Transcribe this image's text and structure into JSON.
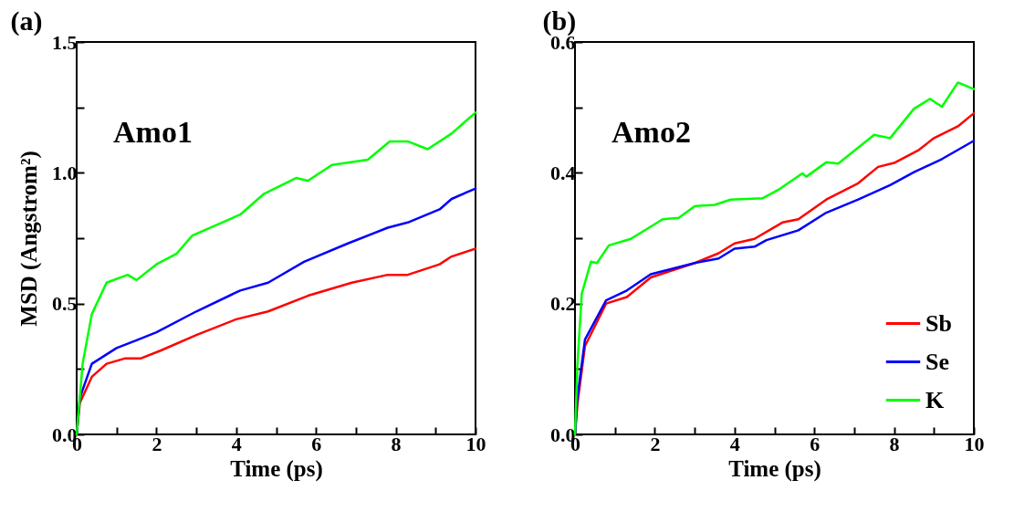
{
  "chart_data": [
    {
      "type": "line",
      "title": "(a)",
      "xlabel": "Time (ps)",
      "ylabel": "MSD (Angstrom²)",
      "annotations": [
        "Amo1"
      ],
      "legend": false,
      "line_style": "solid",
      "xlim": [
        0,
        10
      ],
      "ylim": [
        0,
        1.5
      ],
      "xticks": [
        0,
        {
          "value": 1,
          "label": null
        },
        2,
        {
          "value": 3,
          "label": null
        },
        4,
        {
          "value": 5,
          "label": null
        },
        6,
        {
          "value": 7,
          "label": null
        },
        8,
        {
          "value": 9,
          "label": null
        },
        10
      ],
      "yticks": [
        {
          "value": 0,
          "label": "0.0"
        },
        {
          "value": 0.25,
          "label": null
        },
        {
          "value": 0.5,
          "label": "0.5"
        },
        {
          "value": 0.75,
          "label": null
        },
        {
          "value": 1,
          "label": "1.0"
        },
        {
          "value": 1.25,
          "label": null
        },
        {
          "value": 1.5,
          "label": "1.5"
        }
      ],
      "series": [
        {
          "color": "#ff0000",
          "x": [
            0,
            0.08,
            0.38,
            0.75,
            1.2,
            1.6,
            2.1,
            3.0,
            4.0,
            4.8,
            5.8,
            6.9,
            7.8,
            8.3,
            9.1,
            9.4,
            10
          ],
          "values": [
            0,
            0.12,
            0.22,
            0.27,
            0.29,
            0.29,
            0.32,
            0.38,
            0.44,
            0.47,
            0.53,
            0.58,
            0.61,
            0.61,
            0.65,
            0.68,
            0.71
          ]
        },
        {
          "color": "#0000ff",
          "x": [
            0,
            0.08,
            0.38,
            1.0,
            1.5,
            2.0,
            3.0,
            4.1,
            4.8,
            5.7,
            6.8,
            7.8,
            8.3,
            9.1,
            9.4,
            10
          ],
          "values": [
            0,
            0.14,
            0.27,
            0.33,
            0.36,
            0.39,
            0.47,
            0.55,
            0.58,
            0.66,
            0.73,
            0.79,
            0.81,
            0.86,
            0.9,
            0.94
          ]
        },
        {
          "color": "#00ff00",
          "x": [
            0,
            0.15,
            0.38,
            0.75,
            1.28,
            1.5,
            2.0,
            2.5,
            2.9,
            3.5,
            4.1,
            4.7,
            5.5,
            5.8,
            6.4,
            7.3,
            7.85,
            8.3,
            8.8,
            9.4,
            10
          ],
          "values": [
            0,
            0.27,
            0.46,
            0.58,
            0.61,
            0.59,
            0.65,
            0.69,
            0.76,
            0.8,
            0.84,
            0.92,
            0.98,
            0.97,
            1.03,
            1.05,
            1.12,
            1.12,
            1.09,
            1.15,
            1.23
          ]
        }
      ]
    },
    {
      "type": "line",
      "title": "(b)",
      "xlabel": "Time (ps)",
      "annotations": [
        "Amo2"
      ],
      "legend": "bottom right",
      "line_style": "solid",
      "xlim": [
        0,
        10
      ],
      "ylim": [
        0,
        0.6
      ],
      "xticks": [
        0,
        {
          "value": 1,
          "label": null
        },
        2,
        {
          "value": 3,
          "label": null
        },
        4,
        {
          "value": 5,
          "label": null
        },
        6,
        {
          "value": 7,
          "label": null
        },
        8,
        {
          "value": 9,
          "label": null
        },
        10
      ],
      "yticks": [
        {
          "value": 0,
          "label": "0.0"
        },
        {
          "value": 0.1,
          "label": null
        },
        0.2,
        {
          "value": 0.3,
          "label": null
        },
        0.4,
        {
          "value": 0.5,
          "label": null
        },
        0.6
      ],
      "series": [
        {
          "name": "Sb",
          "color": "#ff0000",
          "x": [
            0,
            0.06,
            0.25,
            0.78,
            1.3,
            1.9,
            3.0,
            3.6,
            4.0,
            4.5,
            5.2,
            5.6,
            6.3,
            7.1,
            7.6,
            8.0,
            8.6,
            9.0,
            9.6,
            10
          ],
          "values": [
            0,
            0.046,
            0.135,
            0.2,
            0.21,
            0.24,
            0.262,
            0.277,
            0.292,
            0.299,
            0.324,
            0.329,
            0.359,
            0.384,
            0.409,
            0.415,
            0.434,
            0.453,
            0.471,
            0.491
          ]
        },
        {
          "name": "Se",
          "color": "#0000ff",
          "x": [
            0,
            0.06,
            0.25,
            0.78,
            1.3,
            1.9,
            3.0,
            3.6,
            4.0,
            4.5,
            4.8,
            5.6,
            6.3,
            7.1,
            7.9,
            8.5,
            9.2,
            10
          ],
          "values": [
            0,
            0.056,
            0.145,
            0.205,
            0.22,
            0.245,
            0.262,
            0.269,
            0.284,
            0.287,
            0.297,
            0.312,
            0.339,
            0.359,
            0.381,
            0.401,
            0.421,
            0.449
          ]
        },
        {
          "name": "K",
          "color": "#00ff00",
          "x": [
            0,
            0.06,
            0.17,
            0.4,
            0.55,
            0.85,
            1.4,
            1.8,
            2.2,
            2.6,
            3.0,
            3.5,
            3.9,
            4.7,
            5.1,
            5.7,
            5.8,
            6.3,
            6.6,
            7.5,
            7.9,
            8.5,
            8.9,
            9.2,
            9.6,
            10
          ],
          "values": [
            0,
            0.105,
            0.215,
            0.264,
            0.262,
            0.289,
            0.299,
            0.314,
            0.329,
            0.331,
            0.349,
            0.351,
            0.359,
            0.361,
            0.374,
            0.399,
            0.394,
            0.416,
            0.414,
            0.458,
            0.453,
            0.498,
            0.513,
            0.501,
            0.538,
            0.528
          ]
        }
      ]
    }
  ]
}
